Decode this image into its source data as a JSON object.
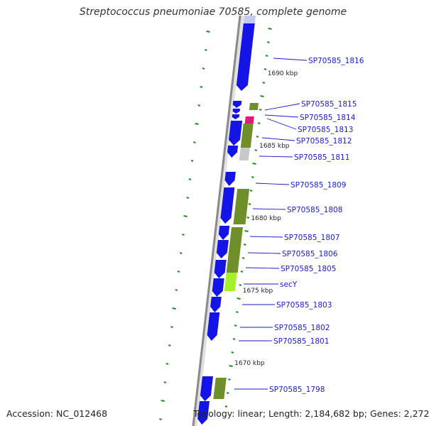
{
  "title": "Streptococcus pneumoniae 70585, complete genome",
  "footer": {
    "accession": "Accession: NC_012468",
    "summary": "Topology: linear; Length: 2,184,682 bp; Genes: 2,272"
  },
  "colors": {
    "backbone": "#8a8a8a",
    "gene_blue": "#1414e6",
    "gene_olive": "#6f8f2a",
    "gene_lightgreen": "#a6f02a",
    "gene_pink": "#e6197a",
    "gene_gray": "#c8c8c8",
    "gene_lavender": "#c8c8f5",
    "tick": "#1e8c1e",
    "label": "#1a1acc",
    "leader": "#1a1acc"
  },
  "kbp_labels": [
    {
      "text": "1690 kbp",
      "kbp": 1690
    },
    {
      "text": "1685 kbp",
      "kbp": 1685
    },
    {
      "text": "1680 kbp",
      "kbp": 1680
    },
    {
      "text": "1675 kbp",
      "kbp": 1675
    },
    {
      "text": "1670 kbp",
      "kbp": 1670
    }
  ],
  "gene_labels": [
    "SP70585_1816",
    "SP70585_1815",
    "SP70585_1814",
    "SP70585_1813",
    "SP70585_1812",
    "SP70585_1811",
    "SP70585_1809",
    "SP70585_1808",
    "SP70585_1807",
    "SP70585_1806",
    "SP70585_1805",
    "secY",
    "SP70585_1803",
    "SP70585_1802",
    "SP70585_1801",
    "SP70585_1798"
  ]
}
